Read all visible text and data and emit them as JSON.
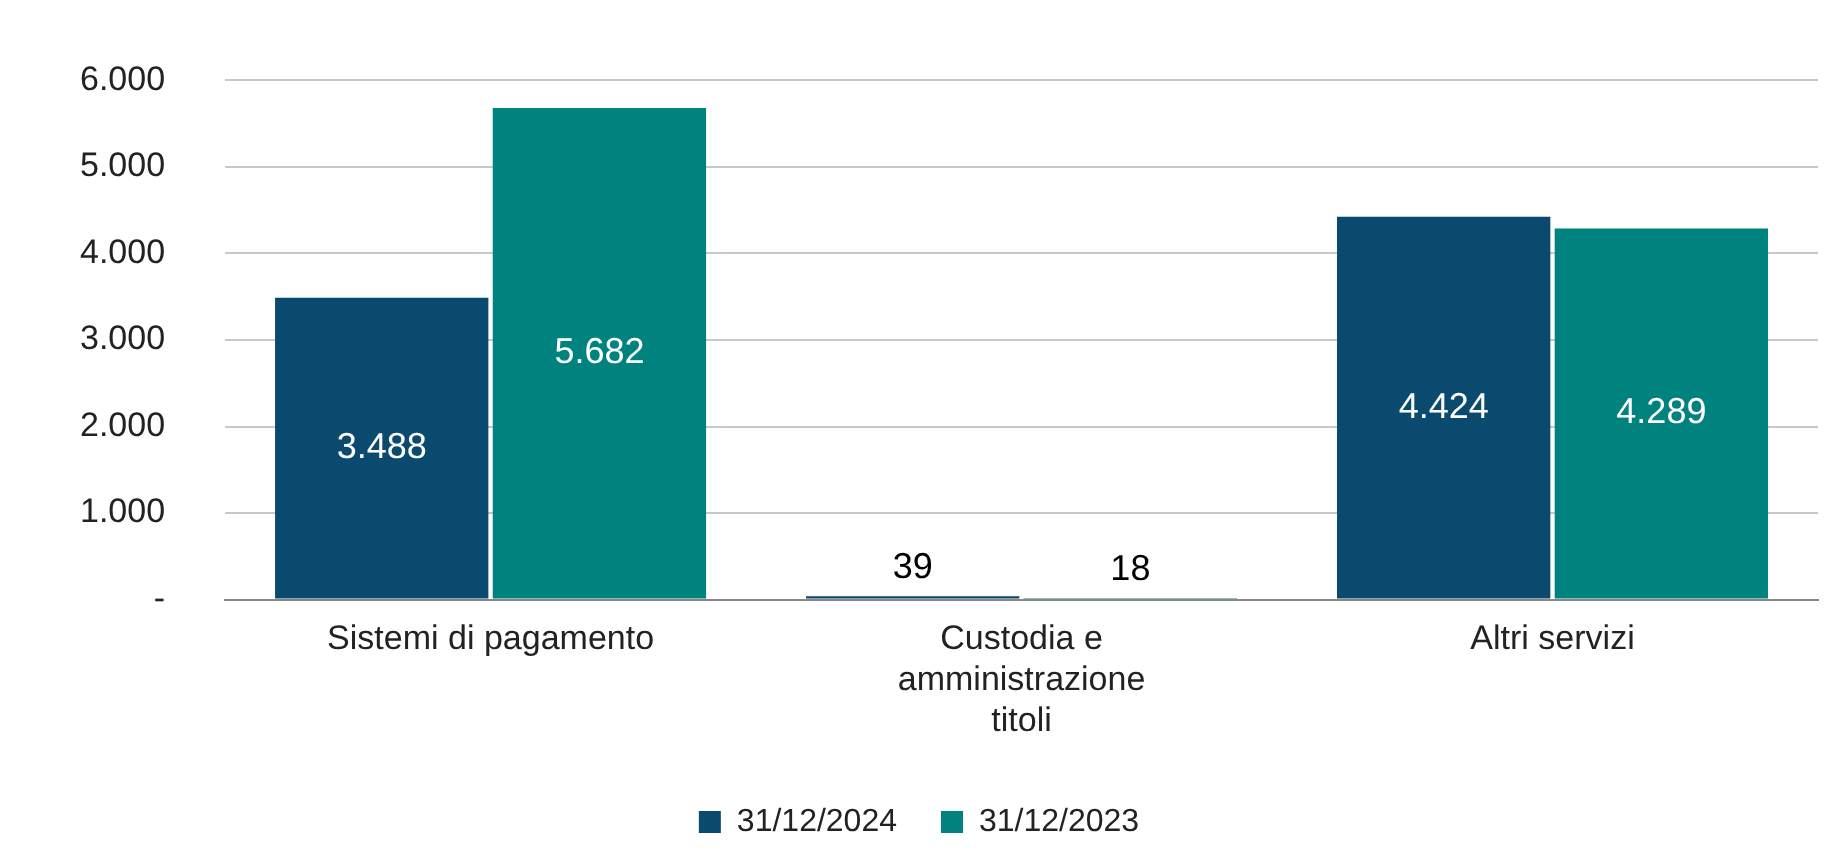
{
  "chart_data": {
    "type": "bar",
    "categories": [
      "Sistemi di pagamento",
      "Custodia e amministrazione titoli",
      "Altri servizi"
    ],
    "series": [
      {
        "name": "31/12/2024",
        "color": "#0b4a6f",
        "values": [
          3488,
          39,
          4424
        ],
        "value_labels": [
          "3.488",
          "39",
          "4.424"
        ]
      },
      {
        "name": "31/12/2023",
        "color": "#00827f",
        "values": [
          5682,
          18,
          4289
        ],
        "value_labels": [
          "5.682",
          "18",
          "4.289"
        ]
      }
    ],
    "ylim": [
      0,
      6000
    ],
    "yticks": [
      {
        "value": 0,
        "label": "-"
      },
      {
        "value": 1000,
        "label": "1.000"
      },
      {
        "value": 2000,
        "label": "2.000"
      },
      {
        "value": 3000,
        "label": "3.000"
      },
      {
        "value": 4000,
        "label": "4.000"
      },
      {
        "value": 5000,
        "label": "5.000"
      },
      {
        "value": 6000,
        "label": "6.000"
      }
    ],
    "grid": "y",
    "legend": "bottom"
  }
}
